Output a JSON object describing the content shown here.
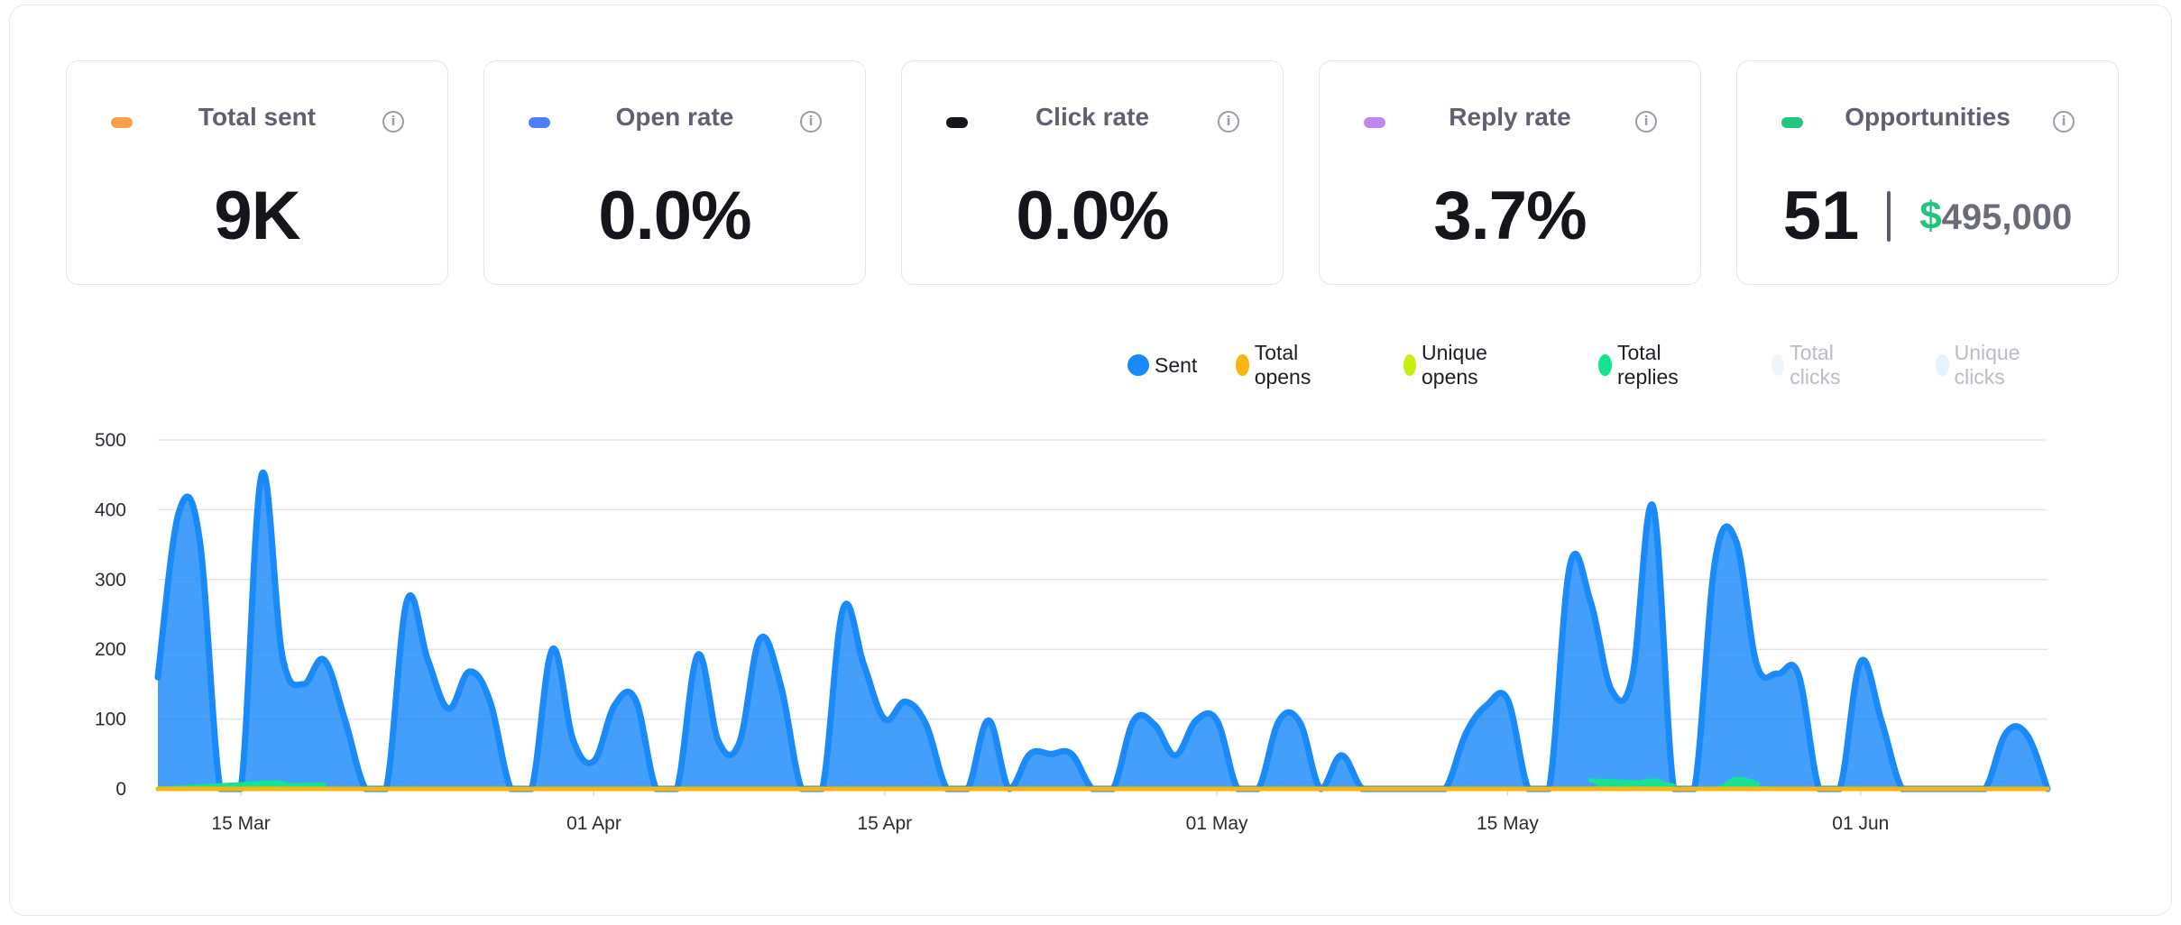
{
  "cards": [
    {
      "label": "Total sent",
      "value": "9K",
      "color": "#f6a04a",
      "info_icon": "info-icon"
    },
    {
      "label": "Open rate",
      "value": "0.0%",
      "color": "#4f7df5",
      "info_icon": "info-icon"
    },
    {
      "label": "Click rate",
      "value": "0.0%",
      "color": "#16161c",
      "info_icon": "info-icon"
    },
    {
      "label": "Reply rate",
      "value": "3.7%",
      "color": "#c287ea",
      "info_icon": "info-icon"
    },
    {
      "label": "Opportunities",
      "count": "51",
      "currency_symbol": "$",
      "amount": "495,000",
      "color": "#23c47e",
      "info_icon": "info-icon"
    }
  ],
  "legend": [
    {
      "label": "Sent",
      "color": "#1a8af8",
      "active": true
    },
    {
      "label": "Total opens",
      "color": "#f8b611",
      "active": true
    },
    {
      "label": "Unique opens",
      "color": "#c6ef11",
      "active": true
    },
    {
      "label": "Total replies",
      "color": "#14e390",
      "active": true
    },
    {
      "label": "Total clicks",
      "color": "#eff5fb",
      "active": false
    },
    {
      "label": "Unique clicks",
      "color": "#e4f3fb",
      "active": false
    }
  ],
  "chart_data": {
    "type": "area",
    "title": "",
    "xlabel": "",
    "ylabel": "",
    "ylim": [
      0,
      500
    ],
    "y_ticks": [
      0,
      100,
      200,
      300,
      400,
      500
    ],
    "x_ticks": [
      "15 Mar",
      "01 Apr",
      "15 Apr",
      "01 May",
      "15 May",
      "01 Jun"
    ],
    "x_tick_dates": [
      "2024-03-15",
      "2024-04-01",
      "2024-04-15",
      "2024-05-01",
      "2024-05-15",
      "2024-06-01"
    ],
    "x_range": [
      "2024-03-11",
      "2024-06-10"
    ],
    "grid": true,
    "legend_position": "top-right",
    "series": [
      {
        "name": "Sent",
        "color": "#1a8af8",
        "points": [
          [
            "2024-03-11",
            160
          ],
          [
            "2024-03-12",
            395
          ],
          [
            "2024-03-13",
            360
          ],
          [
            "2024-03-14",
            0
          ],
          [
            "2024-03-15",
            0
          ],
          [
            "2024-03-16",
            450
          ],
          [
            "2024-03-17",
            190
          ],
          [
            "2024-03-18",
            150
          ],
          [
            "2024-03-19",
            185
          ],
          [
            "2024-03-20",
            100
          ],
          [
            "2024-03-21",
            0
          ],
          [
            "2024-03-22",
            0
          ],
          [
            "2024-03-23",
            270
          ],
          [
            "2024-03-24",
            185
          ],
          [
            "2024-03-25",
            115
          ],
          [
            "2024-03-26",
            168
          ],
          [
            "2024-03-27",
            125
          ],
          [
            "2024-03-28",
            0
          ],
          [
            "2024-03-29",
            0
          ],
          [
            "2024-03-30",
            200
          ],
          [
            "2024-03-31",
            70
          ],
          [
            "2024-04-01",
            40
          ],
          [
            "2024-04-02",
            120
          ],
          [
            "2024-04-03",
            128
          ],
          [
            "2024-04-04",
            0
          ],
          [
            "2024-04-05",
            0
          ],
          [
            "2024-04-06",
            192
          ],
          [
            "2024-04-07",
            68
          ],
          [
            "2024-04-08",
            66
          ],
          [
            "2024-04-09",
            215
          ],
          [
            "2024-04-10",
            148
          ],
          [
            "2024-04-11",
            0
          ],
          [
            "2024-04-12",
            0
          ],
          [
            "2024-04-13",
            258
          ],
          [
            "2024-04-14",
            178
          ],
          [
            "2024-04-15",
            100
          ],
          [
            "2024-04-16",
            125
          ],
          [
            "2024-04-17",
            92
          ],
          [
            "2024-04-18",
            0
          ],
          [
            "2024-04-19",
            0
          ],
          [
            "2024-04-20",
            98
          ],
          [
            "2024-04-21",
            0
          ],
          [
            "2024-04-22",
            50
          ],
          [
            "2024-04-23",
            50
          ],
          [
            "2024-04-24",
            50
          ],
          [
            "2024-04-25",
            0
          ],
          [
            "2024-04-26",
            0
          ],
          [
            "2024-04-27",
            98
          ],
          [
            "2024-04-28",
            92
          ],
          [
            "2024-04-29",
            48
          ],
          [
            "2024-04-30",
            98
          ],
          [
            "2024-05-01",
            98
          ],
          [
            "2024-05-02",
            0
          ],
          [
            "2024-05-03",
            0
          ],
          [
            "2024-05-04",
            98
          ],
          [
            "2024-05-05",
            95
          ],
          [
            "2024-05-06",
            0
          ],
          [
            "2024-05-07",
            48
          ],
          [
            "2024-05-08",
            0
          ],
          [
            "2024-05-09",
            0
          ],
          [
            "2024-05-10",
            0
          ],
          [
            "2024-05-11",
            0
          ],
          [
            "2024-05-12",
            0
          ],
          [
            "2024-05-13",
            80
          ],
          [
            "2024-05-14",
            120
          ],
          [
            "2024-05-15",
            128
          ],
          [
            "2024-05-16",
            0
          ],
          [
            "2024-05-17",
            0
          ],
          [
            "2024-05-18",
            320
          ],
          [
            "2024-05-19",
            268
          ],
          [
            "2024-05-20",
            142
          ],
          [
            "2024-05-21",
            160
          ],
          [
            "2024-05-22",
            405
          ],
          [
            "2024-05-23",
            0
          ],
          [
            "2024-05-24",
            0
          ],
          [
            "2024-05-25",
            328
          ],
          [
            "2024-05-26",
            355
          ],
          [
            "2024-05-27",
            178
          ],
          [
            "2024-05-28",
            165
          ],
          [
            "2024-05-29",
            165
          ],
          [
            "2024-05-30",
            0
          ],
          [
            "2024-05-31",
            0
          ],
          [
            "2024-06-01",
            182
          ],
          [
            "2024-06-02",
            98
          ],
          [
            "2024-06-03",
            0
          ],
          [
            "2024-06-04",
            0
          ],
          [
            "2024-06-05",
            0
          ],
          [
            "2024-06-06",
            0
          ],
          [
            "2024-06-07",
            0
          ],
          [
            "2024-06-08",
            80
          ],
          [
            "2024-06-09",
            78
          ],
          [
            "2024-06-10",
            0
          ]
        ]
      },
      {
        "name": "Total opens",
        "color": "#f8b611",
        "points": [
          [
            "2024-03-11",
            0
          ],
          [
            "2024-06-10",
            0
          ]
        ]
      },
      {
        "name": "Unique opens",
        "color": "#c6ef11",
        "points": [
          [
            "2024-03-11",
            0
          ],
          [
            "2024-06-10",
            0
          ]
        ]
      },
      {
        "name": "Total replies",
        "color": "#14e390",
        "points": [
          [
            "2024-03-11",
            0
          ],
          [
            "2024-03-16",
            8
          ],
          [
            "2024-03-17",
            8
          ],
          [
            "2024-03-18",
            0
          ],
          [
            "2024-03-19",
            6
          ],
          [
            "2024-03-20",
            0
          ],
          [
            "2024-05-18",
            0
          ],
          [
            "2024-05-19",
            12
          ],
          [
            "2024-05-20",
            0
          ],
          [
            "2024-05-22",
            12
          ],
          [
            "2024-05-23",
            0
          ],
          [
            "2024-05-25",
            0
          ],
          [
            "2024-05-26",
            14
          ],
          [
            "2024-05-27",
            8
          ],
          [
            "2024-05-28",
            0
          ],
          [
            "2024-06-10",
            0
          ]
        ]
      }
    ]
  }
}
